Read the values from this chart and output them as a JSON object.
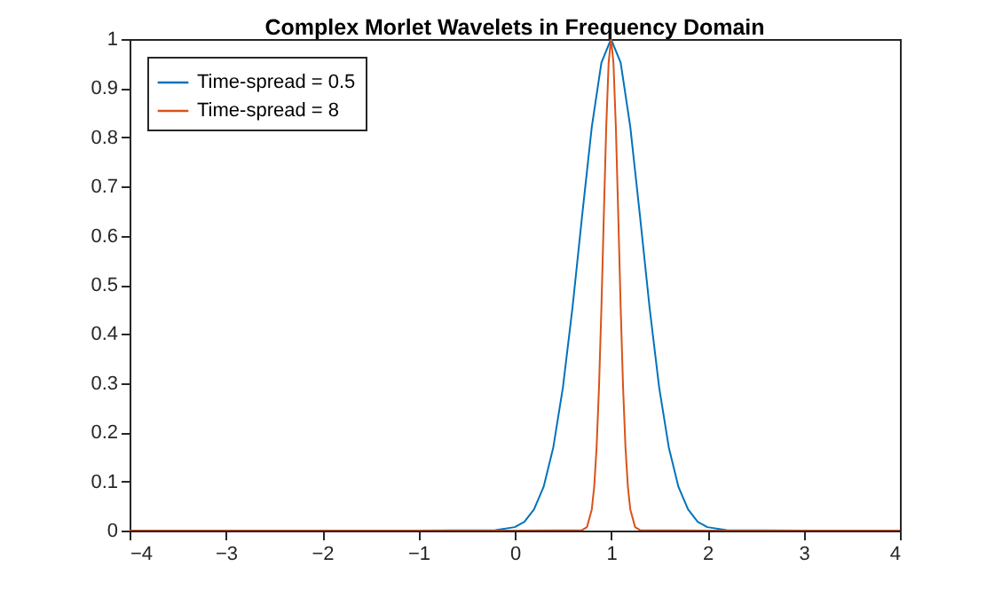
{
  "chart_data": {
    "type": "line",
    "title": "Complex Morlet Wavelets in Frequency Domain",
    "xlim": [
      -4,
      4
    ],
    "ylim": [
      0,
      1
    ],
    "xticks": [
      -4,
      -3,
      -2,
      -1,
      0,
      1,
      2,
      3,
      4
    ],
    "yticks": [
      0,
      0.1,
      0.2,
      0.3,
      0.4,
      0.5,
      0.6,
      0.7,
      0.8,
      0.9,
      1
    ],
    "grid": false,
    "legend": "top left",
    "series": [
      {
        "name": "Time-spread = 0.5",
        "color": "#0072bd",
        "x": [
          -4,
          -1,
          -0.2,
          0,
          0.1,
          0.2,
          0.3,
          0.4,
          0.5,
          0.6,
          0.7,
          0.8,
          0.9,
          1,
          1.1,
          1.2,
          1.3,
          1.4,
          1.5,
          1.6,
          1.7,
          1.8,
          1.9,
          2,
          2.2,
          3,
          4
        ],
        "values": [
          0,
          0,
          0.001,
          0.007,
          0.018,
          0.043,
          0.089,
          0.169,
          0.291,
          0.454,
          0.641,
          0.821,
          0.952,
          1,
          0.952,
          0.821,
          0.641,
          0.454,
          0.291,
          0.169,
          0.089,
          0.043,
          0.018,
          0.007,
          0.001,
          0,
          0
        ]
      },
      {
        "name": "Time-spread = 8",
        "color": "#d95319",
        "x": [
          -4,
          0,
          0.7,
          0.75,
          0.8,
          0.825,
          0.85,
          0.875,
          0.9,
          0.925,
          0.95,
          0.975,
          1,
          1.025,
          1.05,
          1.075,
          1.1,
          1.125,
          1.15,
          1.175,
          1.2,
          1.25,
          1.3,
          2,
          4
        ],
        "values": [
          0,
          0,
          0.001,
          0.007,
          0.043,
          0.089,
          0.169,
          0.291,
          0.454,
          0.641,
          0.821,
          0.952,
          1,
          0.952,
          0.821,
          0.641,
          0.454,
          0.291,
          0.169,
          0.089,
          0.043,
          0.007,
          0.001,
          0,
          0
        ]
      }
    ]
  }
}
